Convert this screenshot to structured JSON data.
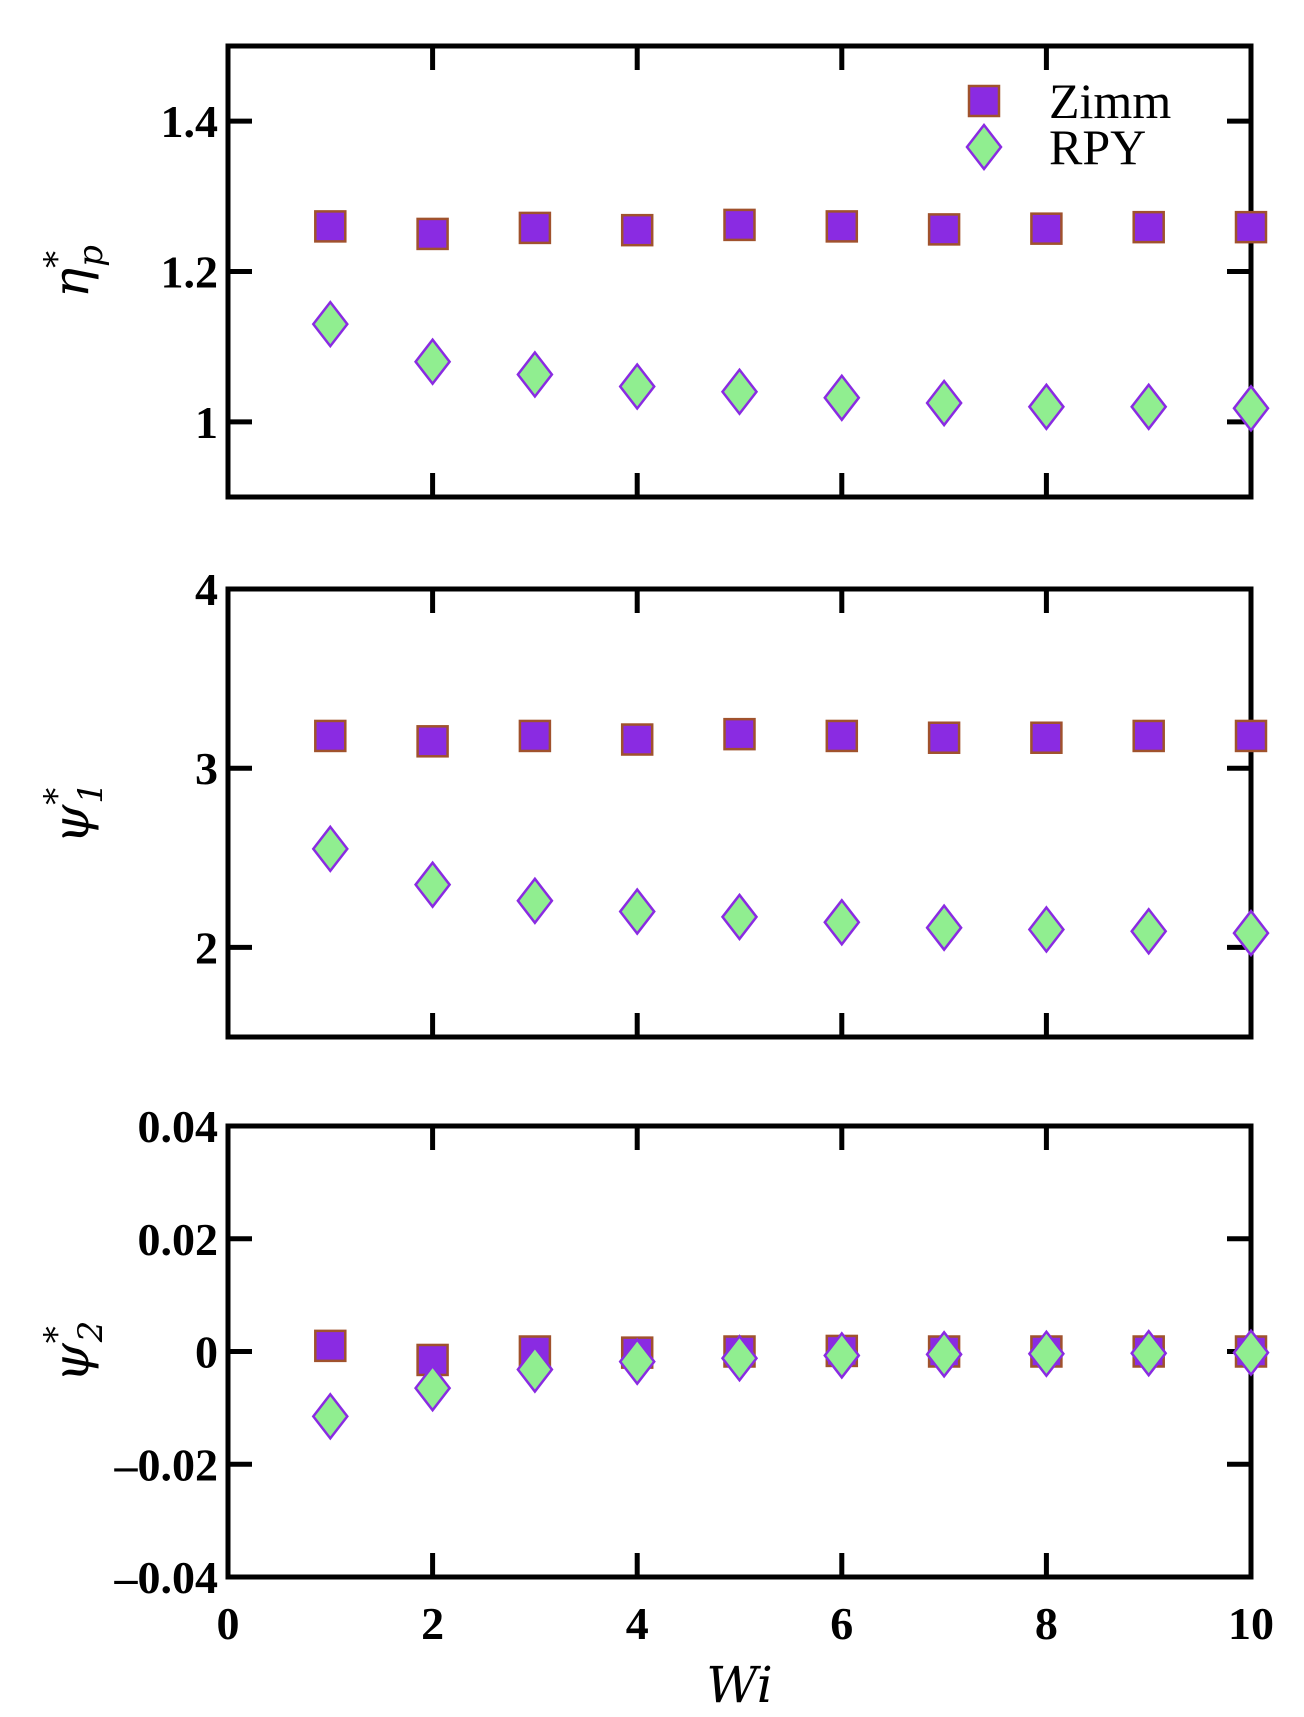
{
  "colors": {
    "zimm_fill": "#8a2be2",
    "zimm_edge": "#a0522d",
    "rpy_fill": "#90ee90",
    "rpy_edge": "#8a2be2",
    "axis": "#000000"
  },
  "legend": {
    "placement": "top-right",
    "entries": [
      {
        "label": "Zimm",
        "marker": "square"
      },
      {
        "label": "RPY",
        "marker": "diamond"
      }
    ]
  },
  "chart_data": [
    {
      "type": "scatter",
      "xlabel": "Wi",
      "ylabel": {
        "base": "η",
        "sup": "*",
        "sub": "p"
      },
      "xlim": [
        0,
        10
      ],
      "ylim": [
        0.9,
        1.5
      ],
      "xticks": [
        0,
        2,
        4,
        6,
        8,
        10
      ],
      "yticks": [
        1.0,
        1.2,
        1.4
      ],
      "ytick_labels": [
        "1",
        "1.2",
        "1.4"
      ],
      "show_x_tick_labels": false,
      "grid": false,
      "series": [
        {
          "name": "Zimm",
          "marker": "square",
          "x": [
            1,
            2,
            3,
            4,
            5,
            6,
            7,
            8,
            9,
            10
          ],
          "y": [
            1.26,
            1.25,
            1.258,
            1.255,
            1.262,
            1.26,
            1.256,
            1.257,
            1.259,
            1.259
          ]
        },
        {
          "name": "RPY",
          "marker": "diamond",
          "x": [
            1,
            2,
            3,
            4,
            5,
            6,
            7,
            8,
            9,
            10
          ],
          "y": [
            1.13,
            1.08,
            1.063,
            1.047,
            1.04,
            1.032,
            1.025,
            1.02,
            1.02,
            1.018
          ]
        }
      ]
    },
    {
      "type": "scatter",
      "xlabel": "Wi",
      "ylabel": {
        "base": "ψ",
        "sup": "*",
        "sub": "1"
      },
      "xlim": [
        0,
        10
      ],
      "ylim": [
        1.5,
        4
      ],
      "xticks": [
        0,
        2,
        4,
        6,
        8,
        10
      ],
      "yticks": [
        2,
        3,
        4
      ],
      "ytick_labels": [
        "2",
        "3",
        "4"
      ],
      "show_x_tick_labels": false,
      "grid": false,
      "series": [
        {
          "name": "Zimm",
          "marker": "square",
          "x": [
            1,
            2,
            3,
            4,
            5,
            6,
            7,
            8,
            9,
            10
          ],
          "y": [
            3.18,
            3.15,
            3.18,
            3.16,
            3.19,
            3.18,
            3.17,
            3.17,
            3.18,
            3.18
          ]
        },
        {
          "name": "RPY",
          "marker": "diamond",
          "x": [
            1,
            2,
            3,
            4,
            5,
            6,
            7,
            8,
            9,
            10
          ],
          "y": [
            2.55,
            2.35,
            2.26,
            2.2,
            2.17,
            2.14,
            2.11,
            2.1,
            2.09,
            2.08
          ]
        }
      ]
    },
    {
      "type": "scatter",
      "xlabel": "Wi",
      "ylabel": {
        "base": "ψ",
        "sup": "*",
        "sub": "2"
      },
      "xlim": [
        0,
        10
      ],
      "ylim": [
        -0.04,
        0.04
      ],
      "xticks": [
        0,
        2,
        4,
        6,
        8,
        10
      ],
      "xtick_labels": [
        "0",
        "2",
        "4",
        "6",
        "8",
        "10"
      ],
      "yticks": [
        -0.04,
        -0.02,
        0,
        0.02,
        0.04
      ],
      "ytick_labels": [
        "–0.04",
        "–0.02",
        "0",
        "0.02",
        "0.04"
      ],
      "show_x_tick_labels": true,
      "grid": false,
      "series": [
        {
          "name": "Zimm",
          "marker": "square",
          "x": [
            1,
            2,
            3,
            4,
            5,
            6,
            7,
            8,
            9,
            10
          ],
          "y": [
            0.001,
            -0.0015,
            0,
            -0.0002,
            0,
            0.0001,
            0,
            0,
            0,
            0
          ]
        },
        {
          "name": "RPY",
          "marker": "diamond",
          "x": [
            1,
            2,
            3,
            4,
            5,
            6,
            7,
            8,
            9,
            10
          ],
          "y": [
            -0.0115,
            -0.0065,
            -0.0032,
            -0.0018,
            -0.0012,
            -0.0007,
            -0.0005,
            -0.0004,
            -0.0003,
            -0.0002
          ]
        }
      ]
    }
  ]
}
